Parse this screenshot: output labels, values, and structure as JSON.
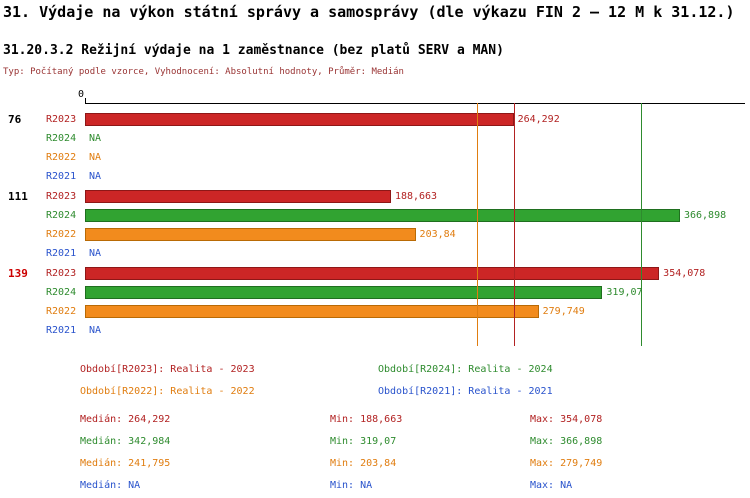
{
  "page_title": "31. Výdaje na výkon státní správy a samosprávy (dle výkazu FIN 2 – 12 M k 31.12.)",
  "chart_data": {
    "type": "bar",
    "orientation": "horizontal",
    "title": "31.20.3.2 Režijní výdaje na 1 zaměstnance (bez platů SERV a MAN)",
    "subtitle": "Typ: Počítaný podle vzorce, Vyhodnocení: Absolutní hodnoty, Průměr: Medián",
    "axis": {
      "origin_label": "0",
      "xmin": 0,
      "xmax": 407,
      "grid": false
    },
    "series_styles": {
      "r2023": {
        "text": "#b22222",
        "fill": "#cc2626",
        "stroke": "#8e1717"
      },
      "r2024": {
        "text": "#2e8b2e",
        "fill": "#31a331",
        "stroke": "#1f6f1f"
      },
      "r2022": {
        "text": "#e07d10",
        "fill": "#f28b1d",
        "stroke": "#b96a05"
      },
      "r2021": {
        "text": "#2953cc",
        "fill": "#2953cc",
        "stroke": "#2953cc"
      }
    },
    "groups": [
      {
        "label": "76",
        "label_color": "#000000",
        "bars": [
          {
            "year": "R2023",
            "series": "r2023",
            "value": 264.292,
            "display": "264,292"
          },
          {
            "year": "R2024",
            "series": "r2024",
            "value": null,
            "display": "NA"
          },
          {
            "year": "R2022",
            "series": "r2022",
            "value": null,
            "display": "NA"
          },
          {
            "year": "R2021",
            "series": "r2021",
            "value": null,
            "display": "NA"
          }
        ]
      },
      {
        "label": "111",
        "label_color": "#000000",
        "bars": [
          {
            "year": "R2023",
            "series": "r2023",
            "value": 188.663,
            "display": "188,663"
          },
          {
            "year": "R2024",
            "series": "r2024",
            "value": 366.898,
            "display": "366,898"
          },
          {
            "year": "R2022",
            "series": "r2022",
            "value": 203.84,
            "display": "203,84"
          },
          {
            "year": "R2021",
            "series": "r2021",
            "value": null,
            "display": "NA"
          }
        ]
      },
      {
        "label": "139",
        "label_color": "#cc0000",
        "bars": [
          {
            "year": "R2023",
            "series": "r2023",
            "value": 354.078,
            "display": "354,078"
          },
          {
            "year": "R2024",
            "series": "r2024",
            "value": 319.07,
            "display": "319,07"
          },
          {
            "year": "R2022",
            "series": "r2022",
            "value": 279.749,
            "display": "279,749"
          },
          {
            "year": "R2021",
            "series": "r2021",
            "value": null,
            "display": "NA"
          }
        ]
      }
    ],
    "median_lines": [
      {
        "series": "r2023",
        "value": 264.292
      },
      {
        "series": "r2024",
        "value": 342.984
      },
      {
        "series": "r2022",
        "value": 241.795
      }
    ],
    "legend": [
      {
        "series": "r2023",
        "label": "Období[R2023]: Realita - 2023",
        "col": 0,
        "row": 0
      },
      {
        "series": "r2024",
        "label": "Období[R2024]: Realita - 2024",
        "col": 1,
        "row": 0
      },
      {
        "series": "r2022",
        "label": "Období[R2022]: Realita - 2022",
        "col": 0,
        "row": 1
      },
      {
        "series": "r2021",
        "label": "Období[R2021]: Realita - 2021",
        "col": 1,
        "row": 1
      }
    ],
    "stats": [
      {
        "series": "r2023",
        "median": "Medián: 264,292",
        "min": "Min: 188,663",
        "max": "Max: 354,078"
      },
      {
        "series": "r2024",
        "median": "Medián: 342,984",
        "min": "Min: 319,07",
        "max": "Max: 366,898"
      },
      {
        "series": "r2022",
        "median": "Medián: 241,795",
        "min": "Min: 203,84",
        "max": "Max: 279,749"
      },
      {
        "series": "r2021",
        "median": "Medián: NA",
        "min": "Min: NA",
        "max": "Max: NA"
      }
    ]
  }
}
